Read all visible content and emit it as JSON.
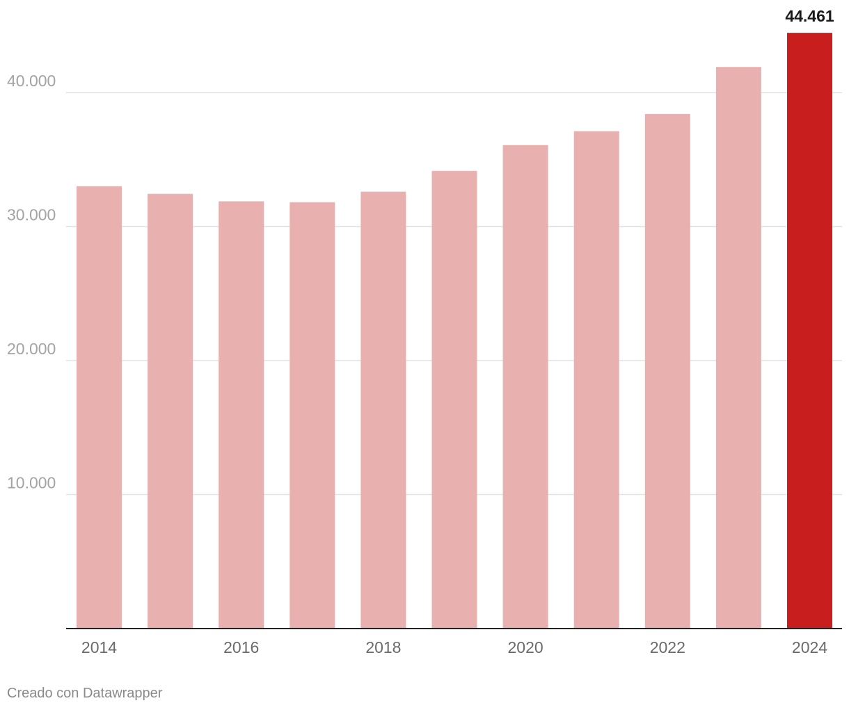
{
  "chart_data": {
    "type": "bar",
    "categories": [
      "2014",
      "2015",
      "2016",
      "2017",
      "2018",
      "2019",
      "2020",
      "2021",
      "2022",
      "2023",
      "2024"
    ],
    "values": [
      33020,
      32440,
      31880,
      31820,
      32600,
      34150,
      36090,
      37120,
      38400,
      41910,
      44461
    ],
    "x_tick_labels": [
      "2014",
      "",
      "2016",
      "",
      "2018",
      "",
      "2020",
      "",
      "2022",
      "",
      "2024"
    ],
    "y_ticks": [
      10000,
      20000,
      30000,
      40000
    ],
    "y_tick_labels": [
      "10.000",
      "20.000",
      "30.000",
      "40.000"
    ],
    "ylim": [
      0,
      46000
    ],
    "highlight_index": 10,
    "highlight_value_label": "44.461",
    "title": "",
    "xlabel": "",
    "ylabel": "",
    "grid": true,
    "legend": false
  },
  "footer": {
    "credit": "Creado con Datawrapper"
  },
  "colors": {
    "bar": "#e9b0b0",
    "bar_highlight": "#c81e1e",
    "gridline": "#e2e2e2",
    "axis_line": "#222222",
    "tick_text": "#a3a3a3",
    "x_tick_text": "#6a6a6a",
    "value_label_text": "#1a1a1a",
    "credit_text": "#8a8a8a"
  }
}
